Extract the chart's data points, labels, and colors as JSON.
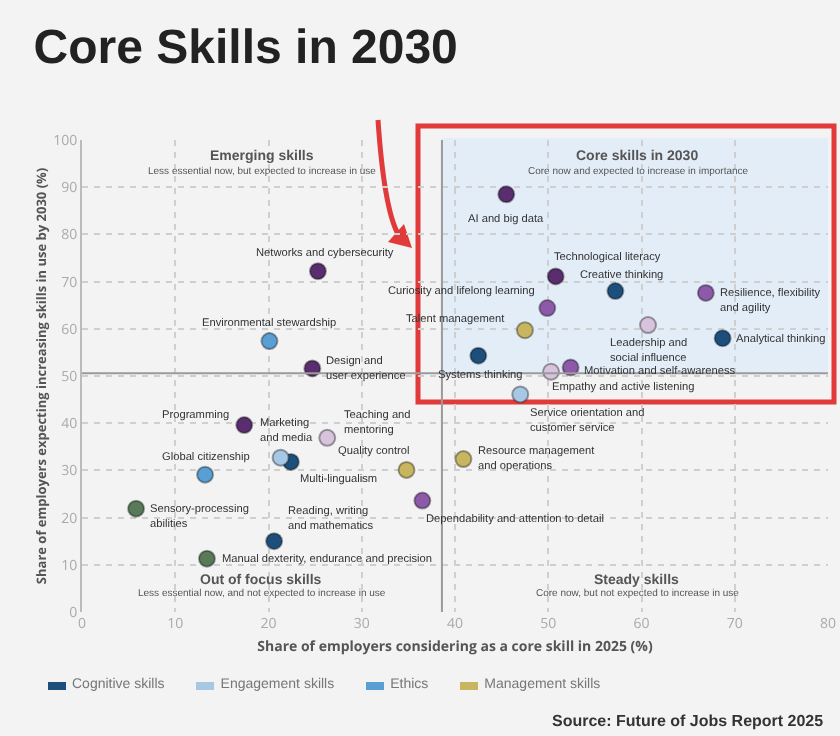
{
  "chart_data": {
    "type": "scatter",
    "title": "Core Skills in 2030",
    "xlabel": "Share of employers considering as a core skill in 2025 (%)",
    "ylabel": "Share of employers expecting increasing skills in use by 2030 (%)",
    "xlim": [
      0,
      80
    ],
    "ylim": [
      0,
      100
    ],
    "xticks": [
      0,
      10,
      20,
      30,
      40,
      50,
      60,
      70,
      80
    ],
    "yticks": [
      0,
      10,
      20,
      30,
      40,
      50,
      60,
      70,
      80,
      90,
      100
    ],
    "grid": true,
    "legend": "bottom",
    "marker": "circle",
    "ref_lines": [
      {
        "axis": "x",
        "value": 38.6,
        "label": null
      },
      {
        "axis": "y",
        "value": 50.6,
        "label": null
      }
    ],
    "series": [
      {
        "name": "Cognitive skills",
        "color": "#1d4f7c",
        "x": [
          57.2,
          68.7,
          42.5,
          20.6,
          22.4
        ],
        "values": [
          68,
          58,
          54.3,
          15,
          31.8
        ]
      },
      {
        "name": "Engagement skills",
        "color": "#a7c8e4",
        "x": [
          21.3,
          47
        ],
        "values": [
          32.7,
          46.1
        ]
      },
      {
        "name": "Ethics",
        "color": "#5a9fd4",
        "x": [
          20.1,
          13.2
        ],
        "values": [
          57.4,
          29.1
        ]
      },
      {
        "name": "Management skills",
        "color": "#c8b560",
        "x": [
          47.5,
          34.8,
          40.9
        ],
        "values": [
          59.7,
          30.1,
          32.4
        ]
      },
      {
        "color": "#8c5aa8",
        "x": [
          66.9,
          49.9,
          52.4,
          36.5
        ],
        "values": [
          67.6,
          64.4,
          51.8,
          23.6
        ]
      },
      {
        "color": "#5a2d6e",
        "x": [
          45.5,
          50.8,
          25.3,
          17.4,
          24.7
        ],
        "values": [
          88.5,
          71.1,
          72.2,
          39.6,
          51.6
        ]
      },
      {
        "color": "#587a58",
        "x": [
          5.8,
          13.4
        ],
        "values": [
          21.9,
          11.3
        ]
      },
      {
        "color": "#d8c3dc",
        "x": [
          60.7,
          50.3,
          26.3
        ],
        "values": [
          60.8,
          50.9,
          36.9
        ]
      }
    ],
    "annotations": [
      "Emerging skills",
      "Less essential now, but expected to increase in use",
      "Core skills in 2030",
      "Core now and expected to increase in importance",
      "Out of focus skills",
      "Less essential now, and not expected to increase in use",
      "Steady skills",
      "Core now, but not expected to increase in use",
      "Source: Future of Jobs Report 2025",
      {
        "text": "AI and big data",
        "x": 45.5,
        "y": 88.5
      },
      {
        "text": "Technological literacy",
        "x": 50.8,
        "y": 71.1
      },
      {
        "text": "Creative thinking",
        "x": 57.2,
        "y": 68
      },
      {
        "text": "Curiosity and lifelong learning",
        "x": 49.9,
        "y": 64.4
      },
      {
        "text": "Talent management",
        "x": 47.5,
        "y": 59.7
      },
      {
        "text": "Resilience, flexibility\nand agility",
        "x": 66.9,
        "y": 67.6
      },
      {
        "text": "Leadership and\nsocial influence",
        "x": 60.7,
        "y": 60.8
      },
      {
        "text": "Analytical thinking",
        "x": 68.7,
        "y": 58
      },
      {
        "text": "Systems thinking",
        "x": 42.5,
        "y": 54.3
      },
      {
        "text": "Motivation and self-awareness",
        "x": 52.4,
        "y": 51.8
      },
      {
        "text": "Empathy and active listening",
        "x": 50.3,
        "y": 50.9
      },
      {
        "text": "Service orientation and\ncustomer service",
        "x": 47,
        "y": 46.1
      },
      {
        "text": "Networks and cybersecurity",
        "x": 25.3,
        "y": 72.2
      },
      {
        "text": "Environmental stewardship",
        "x": 20.1,
        "y": 57.4
      },
      {
        "text": "Design and\nuser experience",
        "x": 24.7,
        "y": 51.6
      },
      {
        "text": "Programming",
        "x": 17.4,
        "y": 39.6
      },
      {
        "text": "Marketing\nand media",
        "x": 21.3,
        "y": 32.7
      },
      {
        "text": "Multi-lingualism",
        "x": 22.4,
        "y": 31.8
      },
      {
        "text": "Teaching and\nmentoring",
        "x": 26.3,
        "y": 36.9
      },
      {
        "text": "Global citizenship",
        "x": 13.2,
        "y": 29.1
      },
      {
        "text": "Sensory-processing\nabilities",
        "x": 5.8,
        "y": 21.9
      },
      {
        "text": "Reading, writing\nand mathematics",
        "x": 20.6,
        "y": 15
      },
      {
        "text": "Manual dexterity, endurance and precision",
        "x": 13.4,
        "y": 11.3
      },
      {
        "text": "Quality control",
        "x": 34.8,
        "y": 30.1
      },
      {
        "text": "Resource management\nand operations",
        "x": 40.9,
        "y": 32.4
      },
      {
        "text": "Dependability and attention to detail",
        "x": 36.5,
        "y": 23.6
      }
    ]
  }
}
